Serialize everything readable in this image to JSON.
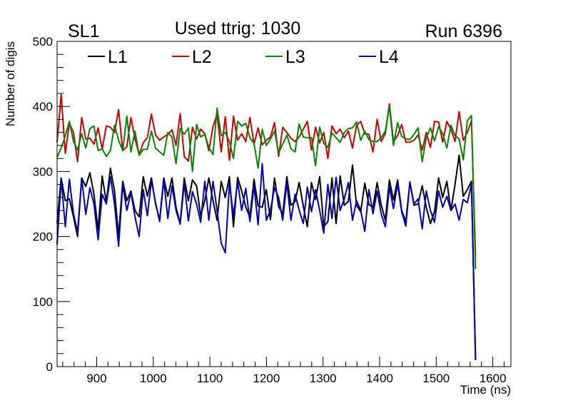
{
  "chart_data": {
    "type": "line",
    "title": "Used ttrig: 1030",
    "corner_left": "SL1",
    "corner_right": "Run 6396",
    "xlabel": "Time (ns)",
    "ylabel": "Number of digis",
    "xlim": [
      830,
      1632
    ],
    "ylim": [
      0,
      500
    ],
    "x_ticks": [
      900,
      1000,
      1100,
      1200,
      1300,
      1400,
      1500,
      1600
    ],
    "y_ticks": [
      0,
      100,
      200,
      300,
      400,
      500
    ],
    "x_start": 830,
    "x_step": 7.25,
    "series": [
      {
        "name": "L1",
        "color": "#000000",
        "values": [
          220,
          290,
          255,
          258,
          230,
          200,
          290,
          277,
          298,
          265,
          210,
          293,
          253,
          305,
          270,
          200,
          285,
          255,
          270,
          240,
          230,
          292,
          262,
          290,
          250,
          225,
          290,
          262,
          290,
          245,
          220,
          290,
          255,
          287,
          278,
          232,
          255,
          290,
          255,
          225,
          285,
          260,
          292,
          215,
          291,
          270,
          245,
          230,
          288,
          247,
          245,
          272,
          226,
          290,
          246,
          235,
          292,
          248,
          254,
          283,
          247,
          215,
          283,
          257,
          292,
          215,
          223,
          290,
          220,
          293,
          248,
          254,
          310,
          248,
          238,
          282,
          249,
          245,
          283,
          249,
          225,
          287,
          256,
          287,
          240,
          223,
          283,
          248,
          250,
          278,
          245,
          220,
          238,
          290,
          260,
          285,
          240,
          280,
          325,
          262,
          272,
          285,
          10
        ]
      },
      {
        "name": "L2",
        "color": "#cc0000",
        "values": [
          345,
          418,
          328,
          374,
          360,
          315,
          383,
          350,
          351,
          342,
          367,
          334,
          370,
          368,
          360,
          395,
          332,
          338,
          383,
          350,
          326,
          344,
          352,
          388,
          356,
          348,
          353,
          357,
          364,
          340,
          389,
          323,
          316,
          368,
          350,
          365,
          358,
          332,
          369,
          388,
          330,
          384,
          317,
          385,
          348,
          358,
          346,
          383,
          342,
          367,
          341,
          348,
          353,
          375,
          323,
          368,
          360,
          351,
          346,
          353,
          365,
          377,
          333,
          368,
          344,
          360,
          320,
          370,
          358,
          365,
          352,
          362,
          336,
          371,
          377,
          358,
          357,
          330,
          380,
          346,
          358,
          404,
          346,
          355,
          372,
          345,
          345,
          348,
          356,
          333,
          360,
          337,
          377,
          376,
          345,
          377,
          365,
          346,
          392,
          348,
          360,
          378,
          170
        ]
      },
      {
        "name": "L3",
        "color": "#008800",
        "values": [
          322,
          336,
          355,
          377,
          346,
          333,
          358,
          336,
          366,
          370,
          332,
          335,
          323,
          332,
          371,
          348,
          332,
          385,
          330,
          362,
          325,
          334,
          334,
          362,
          336,
          330,
          325,
          360,
          353,
          312,
          366,
          357,
          367,
          300,
          372,
          353,
          357,
          337,
          326,
          397,
          355,
          360,
          346,
          320,
          377,
          370,
          374,
          352,
          343,
          305,
          365,
          340,
          350,
          362,
          329,
          342,
          356,
          335,
          330,
          373,
          353,
          352,
          352,
          309,
          368,
          343,
          337,
          359,
          352,
          345,
          360,
          366,
          367,
          376,
          348,
          362,
          349,
          346,
          346,
          352,
          362,
          400,
          340,
          375,
          354,
          350,
          349,
          357,
          367,
          315,
          352,
          367,
          347,
          369,
          358,
          336,
          371,
          355,
          350,
          318,
          378,
          386,
          150
        ]
      },
      {
        "name": "L4",
        "color": "#0000bb",
        "values": [
          188,
          288,
          215,
          288,
          235,
          207,
          290,
          234,
          275,
          250,
          195,
          265,
          250,
          292,
          250,
          185,
          280,
          240,
          268,
          230,
          200,
          272,
          232,
          286,
          252,
          223,
          287,
          228,
          278,
          240,
          219,
          282,
          224,
          269,
          250,
          222,
          285,
          225,
          285,
          240,
          190,
          175,
          281,
          232,
          285,
          240,
          274,
          223,
          278,
          218,
          312,
          225,
          240,
          275,
          260,
          225,
          283,
          225,
          265,
          241,
          220,
          276,
          238,
          272,
          240,
          205,
          280,
          228,
          291,
          240,
          258,
          283,
          225,
          255,
          240,
          208,
          272,
          235,
          270,
          235,
          215,
          276,
          243,
          281,
          238,
          216,
          284,
          250,
          258,
          212,
          270,
          240,
          222,
          270,
          245,
          262,
          240,
          250,
          225,
          257,
          252,
          280,
          10
        ]
      }
    ],
    "legend": [
      "L1",
      "L2",
      "L3",
      "L4"
    ],
    "legend_position": "top-left",
    "grid": false
  }
}
